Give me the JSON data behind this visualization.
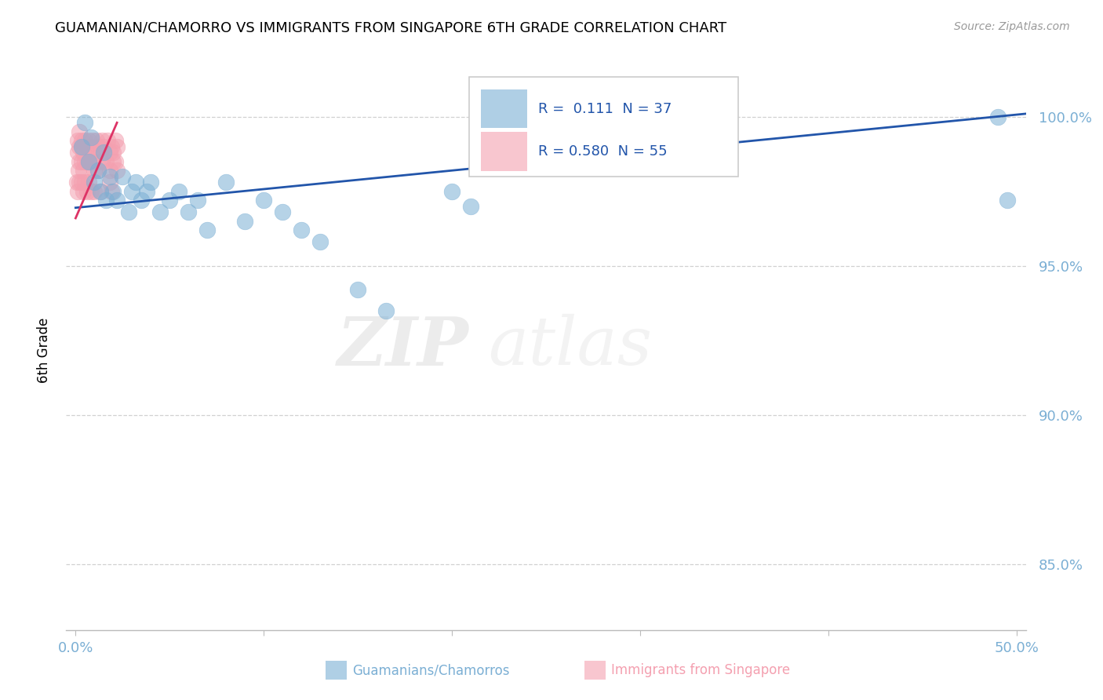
{
  "title": "GUAMANIAN/CHAMORRO VS IMMIGRANTS FROM SINGAPORE 6TH GRADE CORRELATION CHART",
  "source": "Source: ZipAtlas.com",
  "xlabel_label": "Guamanians/Chamorros",
  "xlabel_label2": "Immigrants from Singapore",
  "ylabel": "6th Grade",
  "xlim": [
    -0.005,
    0.505
  ],
  "ylim": [
    0.828,
    1.018
  ],
  "yticks": [
    0.85,
    0.9,
    0.95,
    1.0
  ],
  "ytick_labels": [
    "85.0%",
    "90.0%",
    "95.0%",
    "100.0%"
  ],
  "xtick_positions": [
    0.0,
    0.1,
    0.2,
    0.3,
    0.4,
    0.5
  ],
  "xtick_labels": [
    "0.0%",
    "",
    "",
    "",
    "",
    "50.0%"
  ],
  "legend_R1": "0.111",
  "legend_N1": "37",
  "legend_R2": "0.580",
  "legend_N2": "55",
  "blue_color": "#7BAFD4",
  "pink_color": "#F4A0B0",
  "trend_blue_color": "#2255AA",
  "trend_pink_color": "#DD3366",
  "blue_trend_x": [
    0.0,
    0.505
  ],
  "blue_trend_y": [
    0.9695,
    1.001
  ],
  "pink_trend_x": [
    0.0,
    0.022
  ],
  "pink_trend_y": [
    0.966,
    0.998
  ],
  "blue_scatter_x": [
    0.003,
    0.005,
    0.007,
    0.008,
    0.01,
    0.012,
    0.013,
    0.015,
    0.016,
    0.018,
    0.02,
    0.022,
    0.025,
    0.028,
    0.03,
    0.032,
    0.035,
    0.038,
    0.04,
    0.045,
    0.05,
    0.055,
    0.06,
    0.065,
    0.07,
    0.08,
    0.09,
    0.1,
    0.11,
    0.12,
    0.13,
    0.15,
    0.165,
    0.2,
    0.21,
    0.49,
    0.495
  ],
  "blue_scatter_y": [
    0.99,
    0.998,
    0.985,
    0.993,
    0.978,
    0.982,
    0.975,
    0.988,
    0.972,
    0.98,
    0.975,
    0.972,
    0.98,
    0.968,
    0.975,
    0.978,
    0.972,
    0.975,
    0.978,
    0.968,
    0.972,
    0.975,
    0.968,
    0.972,
    0.962,
    0.978,
    0.965,
    0.972,
    0.968,
    0.962,
    0.958,
    0.942,
    0.935,
    0.975,
    0.97,
    1.0,
    0.972
  ],
  "pink_scatter_x": [
    0.0005,
    0.001,
    0.001,
    0.001,
    0.0015,
    0.002,
    0.002,
    0.002,
    0.002,
    0.003,
    0.003,
    0.003,
    0.003,
    0.004,
    0.004,
    0.004,
    0.005,
    0.005,
    0.005,
    0.006,
    0.006,
    0.006,
    0.007,
    0.007,
    0.007,
    0.008,
    0.008,
    0.008,
    0.009,
    0.009,
    0.01,
    0.01,
    0.01,
    0.011,
    0.011,
    0.012,
    0.012,
    0.013,
    0.013,
    0.014,
    0.014,
    0.015,
    0.016,
    0.017,
    0.018,
    0.018,
    0.019,
    0.02,
    0.021,
    0.021,
    0.022,
    0.022,
    0.018,
    0.019,
    0.02
  ],
  "pink_scatter_y": [
    0.978,
    0.988,
    0.992,
    0.975,
    0.982,
    0.99,
    0.995,
    0.978,
    0.985,
    0.992,
    0.985,
    0.978,
    0.99,
    0.988,
    0.982,
    0.975,
    0.992,
    0.985,
    0.978,
    0.99,
    0.985,
    0.975,
    0.992,
    0.985,
    0.978,
    0.99,
    0.985,
    0.975,
    0.992,
    0.985,
    0.988,
    0.982,
    0.975,
    0.992,
    0.985,
    0.99,
    0.982,
    0.988,
    0.975,
    0.992,
    0.985,
    0.99,
    0.985,
    0.992,
    0.988,
    0.982,
    0.99,
    0.985,
    0.992,
    0.985,
    0.99,
    0.982,
    0.978,
    0.975,
    0.988
  ],
  "watermark_zip": "ZIP",
  "watermark_atlas": "atlas",
  "background_color": "#FFFFFF",
  "grid_color": "#CCCCCC"
}
